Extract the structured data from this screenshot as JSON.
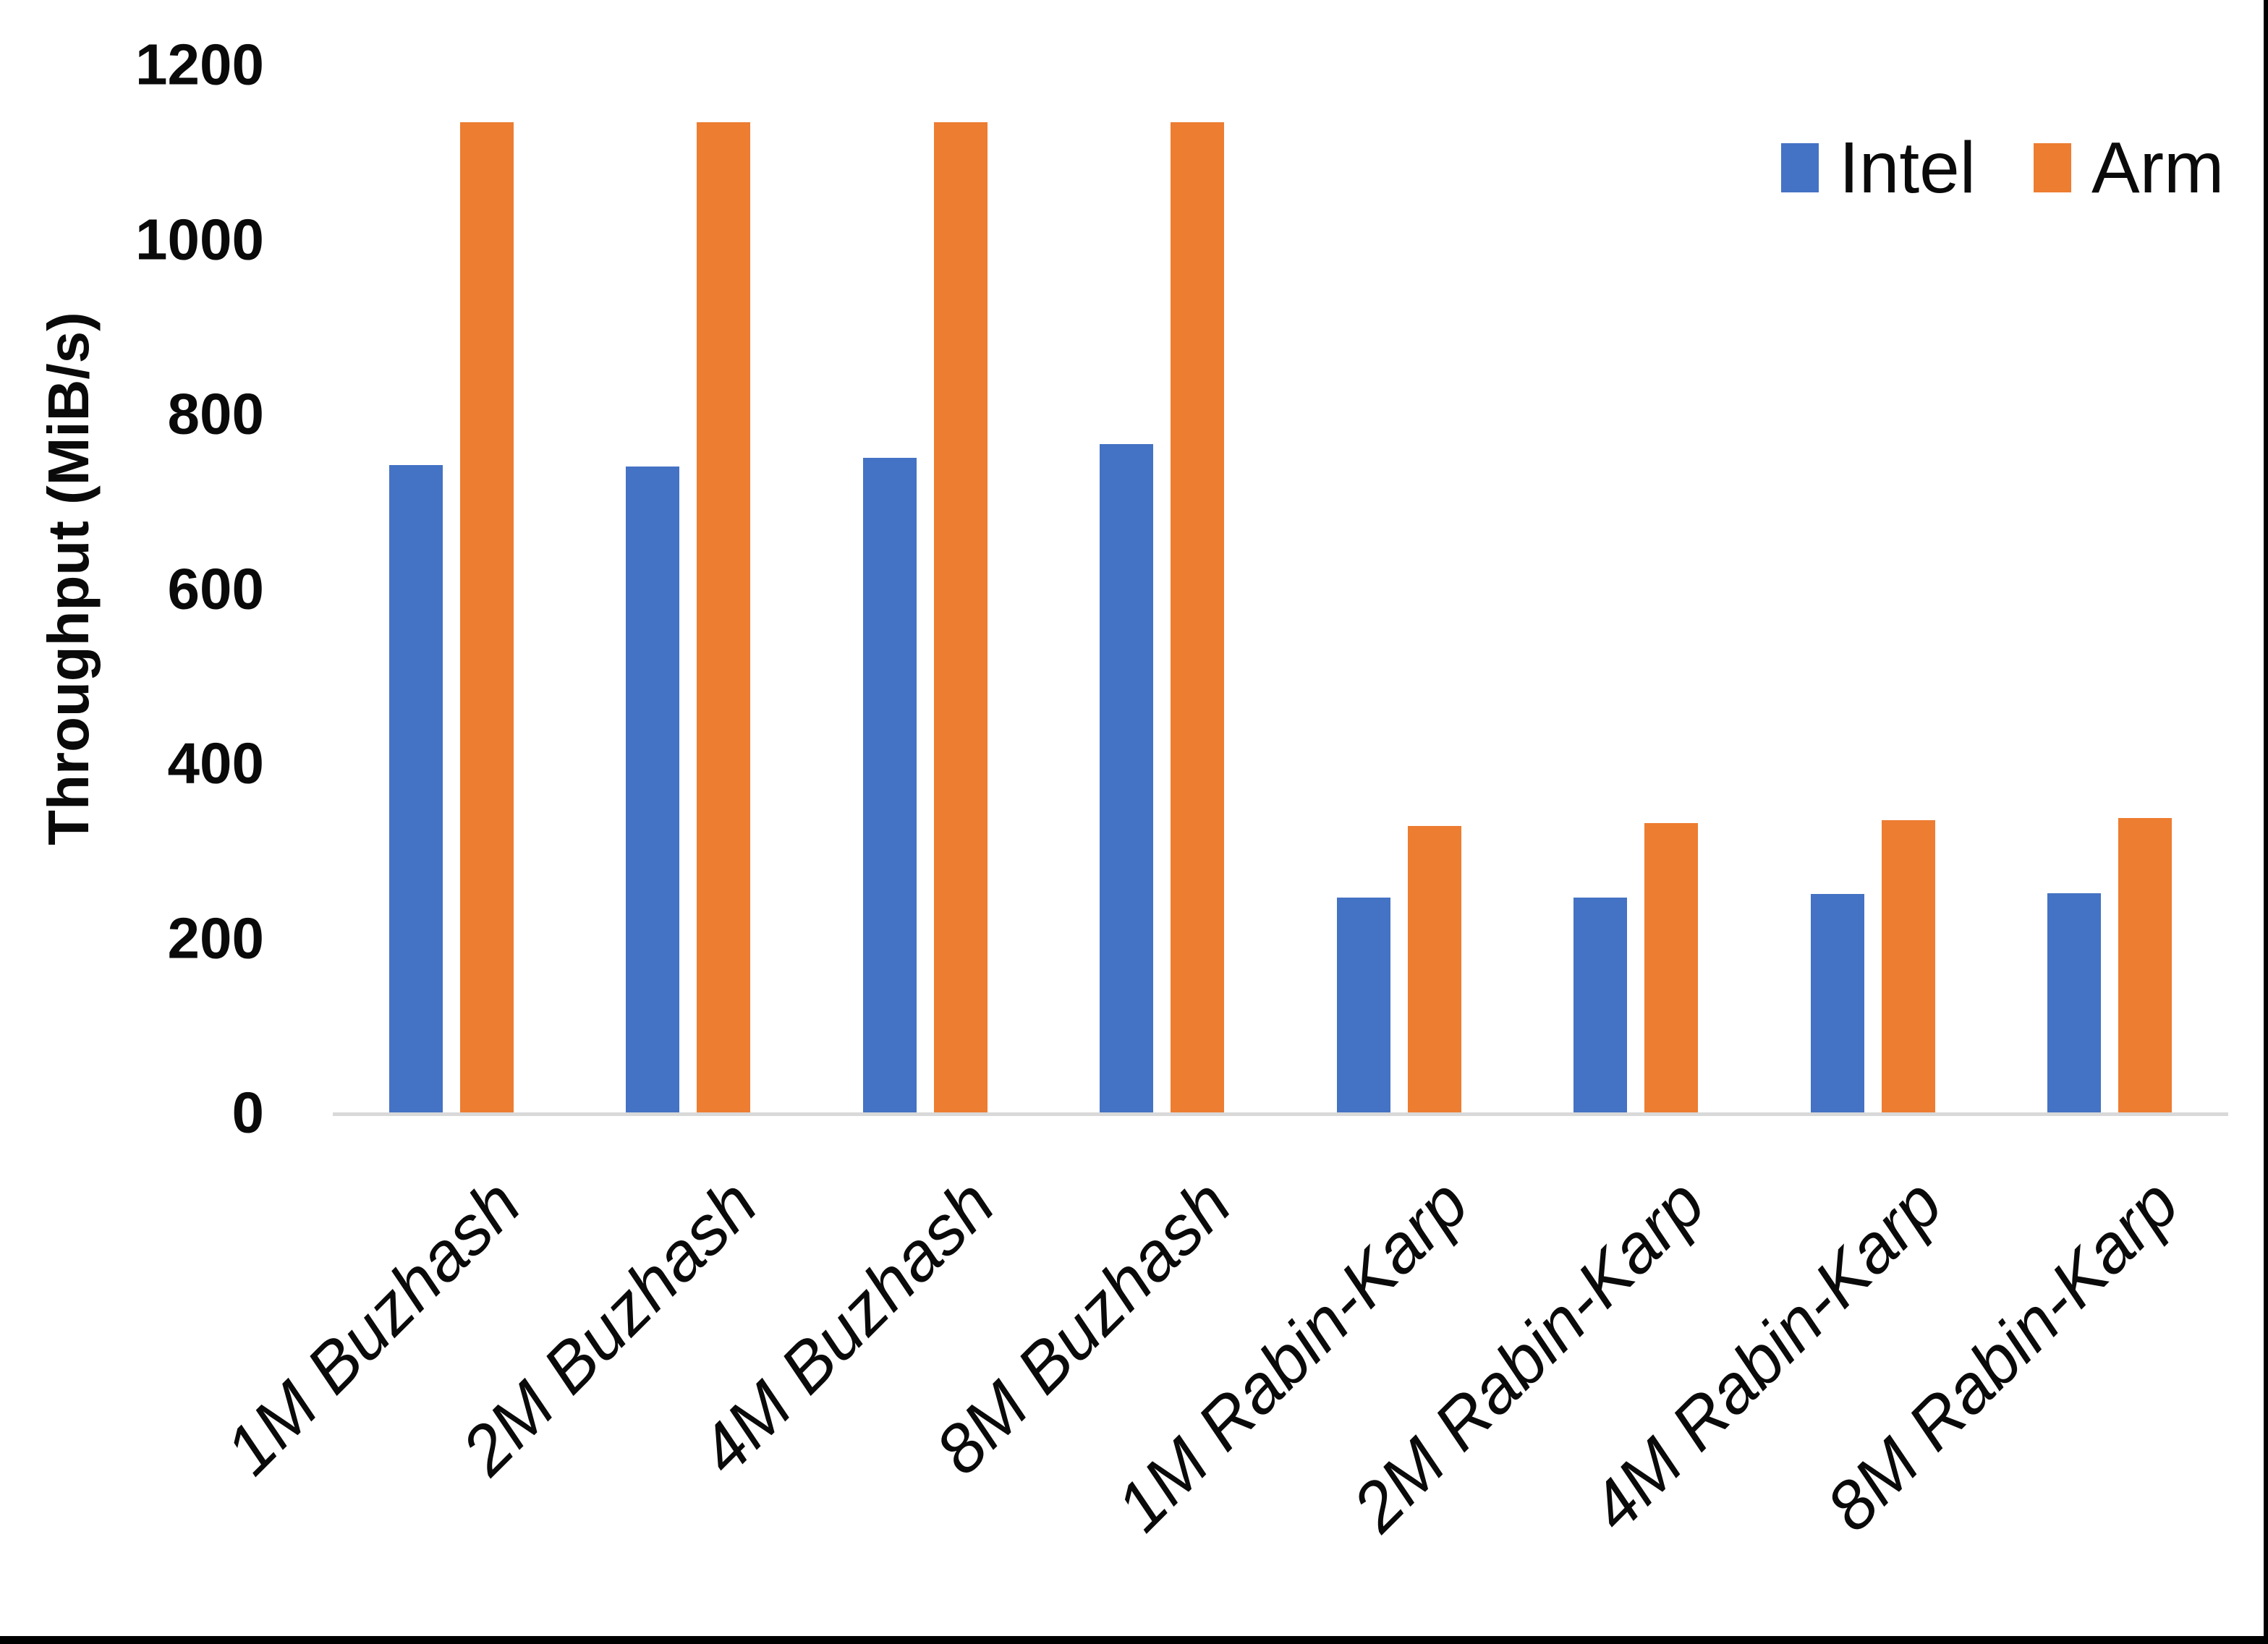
{
  "chart_data": {
    "type": "bar",
    "title": "",
    "ylabel": "Throughput (MiB/s)",
    "xlabel": "",
    "ylim": [
      0,
      1200
    ],
    "yticks": [
      0,
      200,
      400,
      600,
      800,
      1000,
      1200
    ],
    "grid": false,
    "legend_position": "top-right",
    "categories": [
      "1M Buzhash",
      "2M Buzhash",
      "4M Buzhash",
      "8M Buzhash",
      "1M Rabin-Karp",
      "2M Rabin-Karp",
      "4M Rabin-Karp",
      "8M Rabin-Karp"
    ],
    "series": [
      {
        "name": "Intel",
        "color": "#4472C4",
        "values": [
          743,
          741,
          751,
          767,
          248,
          248,
          252,
          253
        ]
      },
      {
        "name": "Arm",
        "color": "#ED7D31",
        "values": [
          1135,
          1135,
          1135,
          1135,
          330,
          333,
          336,
          339
        ]
      }
    ]
  },
  "colors": {
    "background": "#FFFFFF",
    "axis_line": "#D9D9D9",
    "text": "#000000",
    "border": "#000000"
  }
}
